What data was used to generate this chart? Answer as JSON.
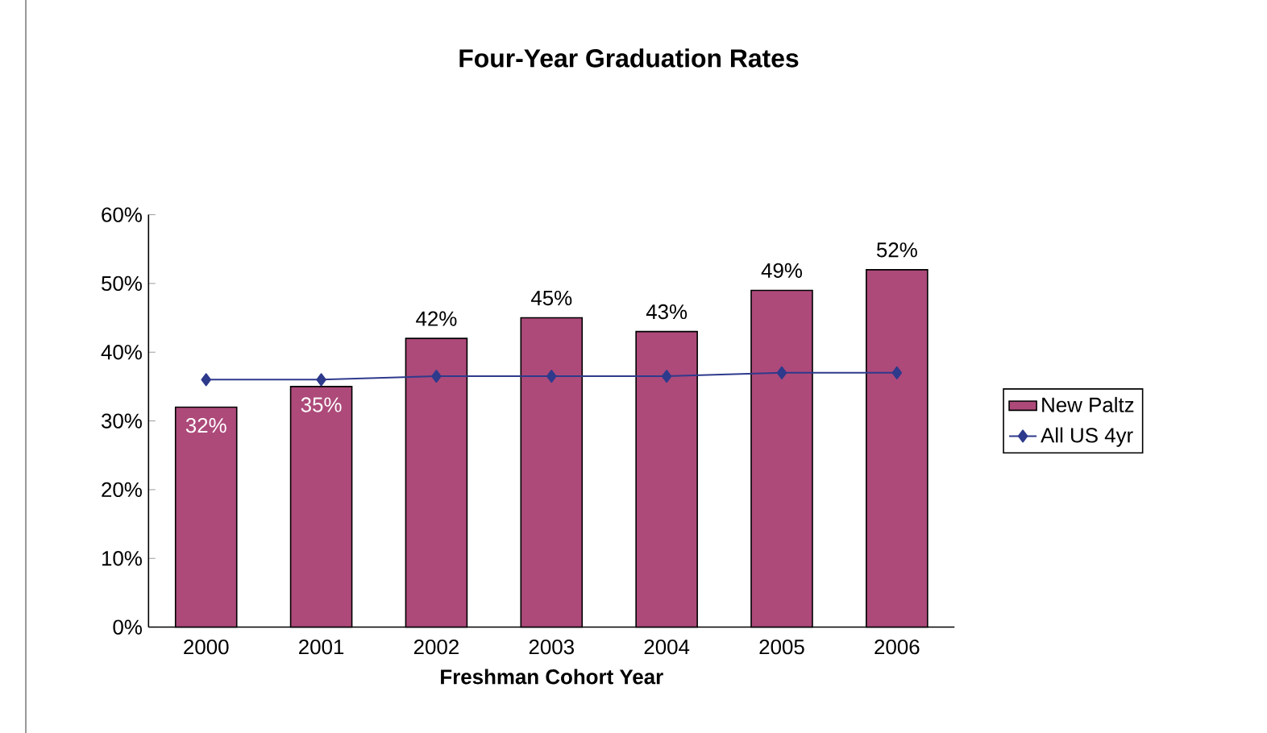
{
  "chart_data": {
    "type": "bar",
    "title": "Four-Year Graduation Rates",
    "xlabel": "Freshman Cohort Year",
    "categories": [
      "2000",
      "2001",
      "2002",
      "2003",
      "2004",
      "2005",
      "2006"
    ],
    "series": [
      {
        "name": "New Paltz",
        "color": "#ad4a7a",
        "values": [
          32,
          35,
          42,
          45,
          43,
          49,
          52
        ],
        "value_labels": [
          "32%",
          "35%",
          "42%",
          "45%",
          "43%",
          "49%",
          "52%"
        ]
      },
      {
        "name": "All US 4yr",
        "type": "line",
        "color": "#2e3a8c",
        "values": [
          36,
          36,
          36.5,
          36.5,
          36.5,
          37,
          37
        ],
        "marker": "diamond"
      }
    ],
    "ylim": [
      0,
      60
    ],
    "yticks": [
      {
        "value": 0,
        "label": "0%"
      },
      {
        "value": 10,
        "label": "10%"
      },
      {
        "value": 20,
        "label": "20%"
      },
      {
        "value": 30,
        "label": "30%"
      },
      {
        "value": 40,
        "label": "40%"
      },
      {
        "value": 50,
        "label": "50%"
      },
      {
        "value": 60,
        "label": "60%"
      }
    ],
    "grid": false,
    "legend": "right"
  }
}
